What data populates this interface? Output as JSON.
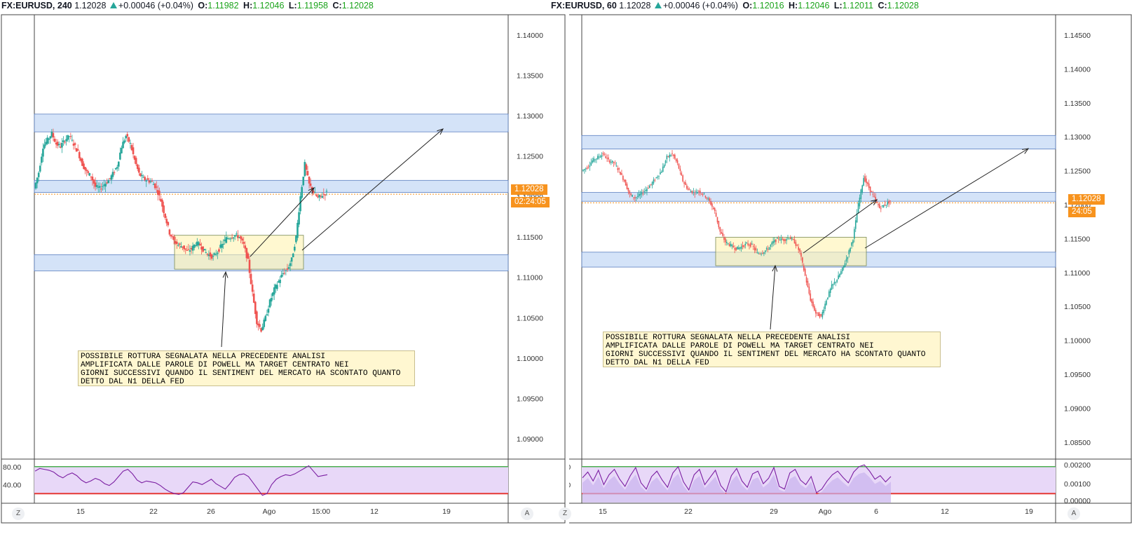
{
  "left": {
    "header": {
      "symbol": "FX:EURUSD, 240",
      "last": "1.12028",
      "change": "+0.00046 (+0.04%)",
      "o_label": "O:",
      "o": "1.11982",
      "h_label": "H:",
      "h": "1.12046",
      "l_label": "L:",
      "l": "1.11958",
      "c_label": "C:",
      "c": "1.12028"
    },
    "price_tag": "1.12028",
    "countdown": "02:24:05",
    "note_lines": [
      "POSSIBILE ROTTURA SEGNALATA NELLA PRECEDENTE ANALISI",
      "AMPLIFICATA DALLE PAROLE DI POWELL MA TARGET CENTRATO NEI",
      "GIORNI SUCCESSIVI QUANDO IL SENTIMENT DEL MERCATO HA SCONTATO QUANTO",
      "DETTO DAL N1 DELLA FED"
    ],
    "btn_z": "Z",
    "btn_a": "A"
  },
  "right": {
    "header": {
      "symbol": "FX:EURUSD, 60",
      "last": "1.12028",
      "change": "+0.00046 (+0.04%)",
      "o_label": "O:",
      "o": "1.12016",
      "h_label": "H:",
      "h": "1.12046",
      "l_label": "L:",
      "l": "1.12011",
      "c_label": "C:",
      "c": "1.12028"
    },
    "price_tag": "1.12028",
    "countdown": "24:05",
    "note_lines": [
      "POSSIBILE ROTTURA SEGNALATA NELLA PRECEDENTE ANALISI",
      "AMPLIFICATA DALLE PAROLE DI POWELL MA TARGET CENTRATO NEI",
      "GIORNI SUCCESSIVI QUANDO IL SENTIMENT DEL MERCATO HA SCONTATO QUANTO",
      "DETTO DAL N1 DELLA FED"
    ],
    "btn_z": "Z",
    "btn_a": "A"
  },
  "colors": {
    "up": "#26a69a",
    "down": "#ef5350",
    "zone_blue": "#c5d9f5",
    "zone_yellow": "#fff3b0",
    "rsi_line": "#7b1fa2",
    "rsi_fill": "#e8d8f8",
    "rsi_upper": "#4caf50",
    "rsi_lower": "#e53935",
    "price_line": "#f7931e"
  },
  "chart_data": [
    {
      "type": "candlestick",
      "symbol": "FX:EURUSD",
      "timeframe": "240",
      "y_ticks": [
        "1.14000",
        "1.13500",
        "1.13000",
        "1.12500",
        "1.12000",
        "1.11500",
        "1.11000",
        "1.10500",
        "1.10000",
        "1.09500",
        "1.09000"
      ],
      "ylim": [
        1.0875,
        1.1425
      ],
      "x_ticks": [
        "15",
        "22",
        "26",
        "Ago",
        "15:00",
        "12",
        "19"
      ],
      "last_price": 1.12028,
      "zones": [
        {
          "color": "blue",
          "from": 1.128,
          "to": 1.1302
        },
        {
          "color": "blue",
          "from": 1.1205,
          "to": 1.122
        },
        {
          "color": "blue",
          "from": 1.1108,
          "to": 1.1128
        },
        {
          "color": "yellow",
          "from": 1.111,
          "to": 1.1152
        }
      ],
      "close_path": [
        1.121,
        1.123,
        1.1262,
        1.127,
        1.1278,
        1.1265,
        1.1262,
        1.127,
        1.1275,
        1.1265,
        1.1255,
        1.124,
        1.123,
        1.1225,
        1.1212,
        1.121,
        1.1215,
        1.122,
        1.1228,
        1.1238,
        1.1262,
        1.1275,
        1.1265,
        1.1245,
        1.1228,
        1.1222,
        1.122,
        1.1218,
        1.121,
        1.1195,
        1.1175,
        1.1155,
        1.1145,
        1.114,
        1.1138,
        1.1132,
        1.1135,
        1.1142,
        1.114,
        1.1132,
        1.1128,
        1.1125,
        1.1132,
        1.114,
        1.1148,
        1.115,
        1.1152,
        1.115,
        1.114,
        1.112,
        1.108,
        1.1045,
        1.1035,
        1.105,
        1.107,
        1.1085,
        1.1095,
        1.1105,
        1.111,
        1.1122,
        1.115,
        1.12,
        1.124,
        1.1215,
        1.1205,
        1.1198,
        1.1202,
        1.1205
      ],
      "rsi": {
        "ylim": [
          0,
          100
        ],
        "levels": [
          80,
          20
        ],
        "ticks": [
          "80.00",
          "40.00"
        ],
        "values": [
          70,
          76,
          74,
          72,
          68,
          60,
          55,
          62,
          66,
          60,
          50,
          44,
          48,
          54,
          50,
          42,
          38,
          46,
          58,
          70,
          74,
          64,
          50,
          44,
          48,
          46,
          44,
          38,
          30,
          24,
          20,
          18,
          22,
          34,
          46,
          44,
          40,
          46,
          52,
          42,
          36,
          30,
          42,
          56,
          62,
          64,
          58,
          44,
          30,
          16,
          20,
          40,
          52,
          58,
          62,
          60,
          64,
          70,
          76,
          82,
          70,
          58,
          60,
          62
        ]
      }
    },
    {
      "type": "candlestick",
      "symbol": "FX:EURUSD",
      "timeframe": "60",
      "y_ticks": [
        "1.14500",
        "1.14000",
        "1.13500",
        "1.13000",
        "1.12500",
        "1.12000",
        "1.11500",
        "1.11000",
        "1.10500",
        "1.10000",
        "1.09500",
        "1.09000",
        "1.08500"
      ],
      "ylim": [
        1.0825,
        1.148
      ],
      "x_ticks": [
        "15",
        "22",
        "29",
        "Ago",
        "6",
        "12",
        "19"
      ],
      "last_price": 1.12028,
      "zones": [
        {
          "color": "blue",
          "from": 1.1282,
          "to": 1.1302
        },
        {
          "color": "blue",
          "from": 1.1205,
          "to": 1.1218
        },
        {
          "color": "blue",
          "from": 1.1108,
          "to": 1.113
        },
        {
          "color": "yellow",
          "from": 1.111,
          "to": 1.1152
        }
      ],
      "close_path": [
        1.125,
        1.1255,
        1.1265,
        1.127,
        1.1275,
        1.1265,
        1.1262,
        1.125,
        1.1235,
        1.1215,
        1.121,
        1.1215,
        1.1222,
        1.123,
        1.124,
        1.125,
        1.127,
        1.1275,
        1.126,
        1.1235,
        1.1222,
        1.1218,
        1.122,
        1.1215,
        1.1205,
        1.119,
        1.116,
        1.1145,
        1.114,
        1.1135,
        1.1138,
        1.1142,
        1.114,
        1.1128,
        1.113,
        1.1135,
        1.1145,
        1.115,
        1.1148,
        1.1152,
        1.1145,
        1.113,
        1.1095,
        1.106,
        1.104,
        1.1035,
        1.106,
        1.108,
        1.109,
        1.1105,
        1.1125,
        1.115,
        1.12,
        1.124,
        1.1225,
        1.121,
        1.1195,
        1.12,
        1.1205
      ],
      "rsi": {
        "ylim": [
          0,
          100
        ],
        "levels": [
          80,
          20
        ],
        "ticks": [
          "80.00",
          "40.00"
        ],
        "secondary_ticks": [
          "0.00200",
          "0.00100",
          "0.00000"
        ],
        "values": [
          55,
          68,
          48,
          72,
          40,
          62,
          74,
          52,
          36,
          60,
          78,
          44,
          30,
          58,
          70,
          50,
          34,
          66,
          80,
          46,
          28,
          62,
          74,
          40,
          56,
          72,
          38,
          24,
          60,
          76,
          48,
          34,
          64,
          70,
          42,
          54,
          78,
          36,
          30,
          66,
          74,
          50,
          40,
          58,
          22,
          30,
          48,
          62,
          70,
          56,
          44,
          68,
          80,
          84,
          70,
          52,
          60,
          46,
          58
        ]
      }
    }
  ]
}
